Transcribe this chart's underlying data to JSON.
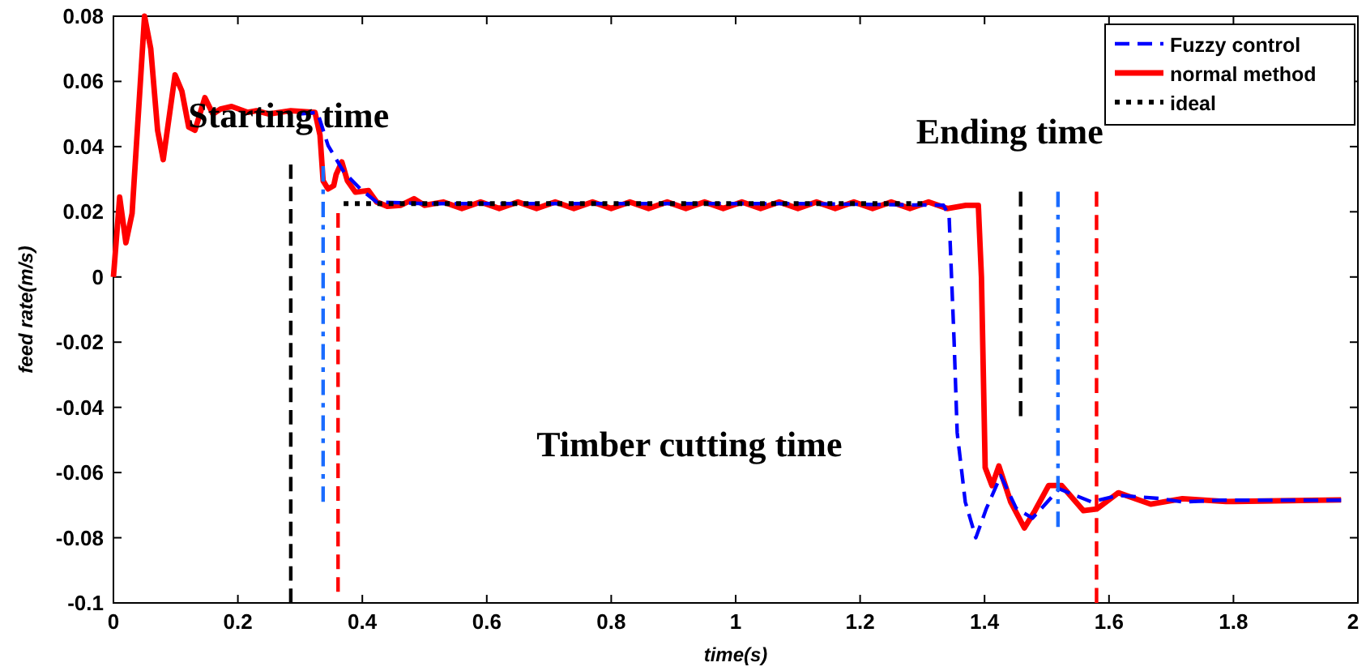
{
  "chart_data": {
    "type": "line",
    "xlabel": "time(s)",
    "ylabel": "feed rate(m/s)",
    "xlim": [
      0,
      2
    ],
    "ylim": [
      -0.1,
      0.08
    ],
    "xticks": [
      0,
      0.2,
      0.4,
      0.6,
      0.8,
      1,
      1.2,
      1.4,
      1.6,
      1.8,
      2
    ],
    "yticks": [
      -0.1,
      -0.08,
      -0.06,
      -0.04,
      -0.02,
      0,
      0.02,
      0.04,
      0.06,
      0.08
    ],
    "grid": false,
    "legend": "top right",
    "annotations": [
      "Starting time",
      "Ending time",
      "Timber cutting time"
    ],
    "series": [
      {
        "name": "Fuzzy control",
        "color": "#0000ff",
        "line_style": "dashed",
        "x": [
          0.3,
          0.328,
          0.345,
          0.371,
          0.397,
          0.423,
          0.5,
          0.8,
          1.1,
          1.334,
          1.343,
          1.351,
          1.356,
          1.369,
          1.386,
          1.403,
          1.426,
          1.451,
          1.477,
          1.52,
          1.572,
          1.615,
          1.684,
          1.718,
          1.78,
          1.973
        ],
        "values": [
          0.05,
          0.0505,
          0.0403,
          0.032,
          0.027,
          0.023,
          0.0225,
          0.0225,
          0.0225,
          0.022,
          0.0188,
          -0.0194,
          -0.0477,
          -0.069,
          -0.08,
          -0.071,
          -0.061,
          -0.071,
          -0.074,
          -0.065,
          -0.069,
          -0.067,
          -0.068,
          -0.069,
          -0.0685,
          -0.0685
        ]
      },
      {
        "name": "normal method",
        "color": "#ff0000",
        "line_style": "solid",
        "x": [
          0,
          0.01,
          0.02,
          0.03,
          0.05,
          0.06,
          0.071,
          0.08,
          0.099,
          0.11,
          0.121,
          0.131,
          0.147,
          0.16,
          0.172,
          0.19,
          0.216,
          0.23,
          0.25,
          0.285,
          0.324,
          0.332,
          0.337,
          0.345,
          0.354,
          0.358,
          0.367,
          0.376,
          0.389,
          0.41,
          0.423,
          0.44,
          0.462,
          0.483,
          0.5,
          0.53,
          0.56,
          0.59,
          0.62,
          0.65,
          0.68,
          0.71,
          0.74,
          0.77,
          0.8,
          0.83,
          0.86,
          0.89,
          0.92,
          0.95,
          0.98,
          1.01,
          1.04,
          1.07,
          1.1,
          1.13,
          1.16,
          1.19,
          1.22,
          1.25,
          1.28,
          1.31,
          1.34,
          1.37,
          1.39,
          1.395,
          1.401,
          1.412,
          1.423,
          1.442,
          1.464,
          1.481,
          1.503,
          1.524,
          1.559,
          1.58,
          1.615,
          1.667,
          1.718,
          1.788,
          1.973
        ],
        "values": [
          0,
          0.0245,
          0.0105,
          0.0195,
          0.08,
          0.07,
          0.045,
          0.036,
          0.062,
          0.057,
          0.046,
          0.045,
          0.055,
          0.05,
          0.0515,
          0.0523,
          0.0505,
          0.051,
          0.05,
          0.051,
          0.0505,
          0.0435,
          0.0295,
          0.027,
          0.028,
          0.0315,
          0.0353,
          0.0295,
          0.026,
          0.0265,
          0.023,
          0.0217,
          0.022,
          0.024,
          0.022,
          0.023,
          0.021,
          0.023,
          0.021,
          0.023,
          0.021,
          0.023,
          0.021,
          0.023,
          0.021,
          0.023,
          0.021,
          0.023,
          0.021,
          0.023,
          0.021,
          0.023,
          0.021,
          0.023,
          0.021,
          0.023,
          0.021,
          0.023,
          0.021,
          0.023,
          0.021,
          0.023,
          0.021,
          0.022,
          0.022,
          0.0,
          -0.0585,
          -0.064,
          -0.058,
          -0.069,
          -0.077,
          -0.0717,
          -0.064,
          -0.064,
          -0.0717,
          -0.0712,
          -0.0662,
          -0.0697,
          -0.068,
          -0.0689,
          -0.0684
        ]
      },
      {
        "name": "ideal",
        "color": "#000000",
        "line_style": "dotted",
        "x": [
          0.37,
          1.3
        ],
        "values": [
          0.0225,
          0.0225
        ]
      },
      {
        "color": "#000000",
        "line_style": "dashed",
        "x": [
          0.285,
          0.285
        ],
        "values": [
          0.0345,
          -0.1
        ]
      },
      {
        "color": "#1a6cff",
        "line_style": "dashdot",
        "x": [
          0.337,
          0.337
        ],
        "values": [
          0.034,
          -0.069
        ]
      },
      {
        "color": "#ff0000",
        "line_style": "dashed",
        "x": [
          0.361,
          0.361
        ],
        "values": [
          0.0196,
          -0.0966
        ]
      },
      {
        "color": "#000000",
        "line_style": "dashed",
        "x": [
          1.458,
          1.458
        ],
        "values": [
          0.0262,
          -0.0427
        ]
      },
      {
        "color": "#1a6cff",
        "line_style": "dashdot",
        "x": [
          1.518,
          1.518
        ],
        "values": [
          0.0262,
          -0.0767
        ]
      },
      {
        "color": "#ff0000",
        "line_style": "dashed",
        "x": [
          1.58,
          1.58
        ],
        "values": [
          0.0262,
          -0.1
        ]
      }
    ]
  }
}
